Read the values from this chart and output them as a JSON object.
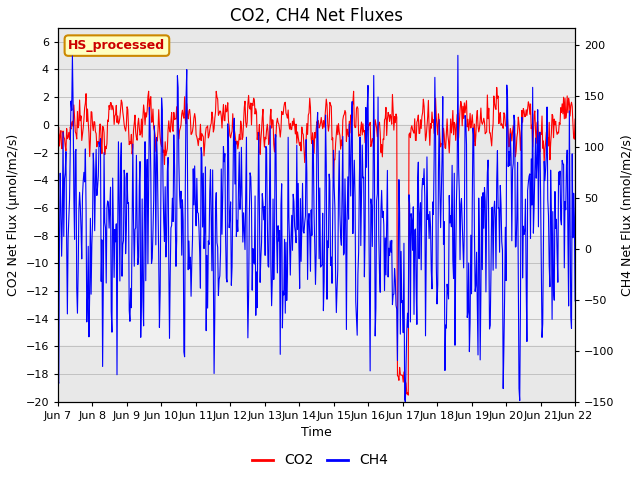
{
  "title": "CO2, CH4 Net Fluxes",
  "xlabel": "Time",
  "ylabel_left": "CO2 Net Flux (μmol/m2/s)",
  "ylabel_right": "CH4 Net Flux (nmol/m2/s)",
  "co2_color": "#FF0000",
  "ch4_color": "#0000FF",
  "ylim_left": [
    -20,
    7
  ],
  "ylim_right": [
    -150,
    217
  ],
  "yticks_left": [
    -20,
    -18,
    -16,
    -14,
    -12,
    -10,
    -8,
    -6,
    -4,
    -2,
    0,
    2,
    4,
    6
  ],
  "yticks_right": [
    -150,
    -100,
    -50,
    0,
    50,
    100,
    150,
    200
  ],
  "xtick_labels": [
    "Jun 7",
    "Jun 8",
    "Jun 9",
    "Jun 10",
    "Jun 11",
    "Jun 12",
    "Jun 13",
    "Jun 14",
    "Jun 15",
    "Jun 16",
    "Jun 17",
    "Jun 18",
    "Jun 19",
    "Jun 20",
    "Jun 21",
    "Jun 22"
  ],
  "xtick_positions": [
    0,
    1,
    2,
    3,
    4,
    5,
    6,
    7,
    8,
    9,
    10,
    11,
    12,
    13,
    14,
    15
  ],
  "annotation_text": "HS_processed",
  "annotation_bg": "#FFFFC0",
  "annotation_border": "#CC8800",
  "annotation_text_color": "#CC0000",
  "bg_color": "#FFFFFF",
  "plot_bg_color": "#F0F0F0",
  "stripe_color": "#DCDCDC",
  "grid_color": "#CCCCCC",
  "title_fontsize": 12,
  "label_fontsize": 9,
  "tick_fontsize": 8,
  "legend_fontsize": 10,
  "line_width": 0.8,
  "n_points": 720,
  "days": 15,
  "seed": 7
}
